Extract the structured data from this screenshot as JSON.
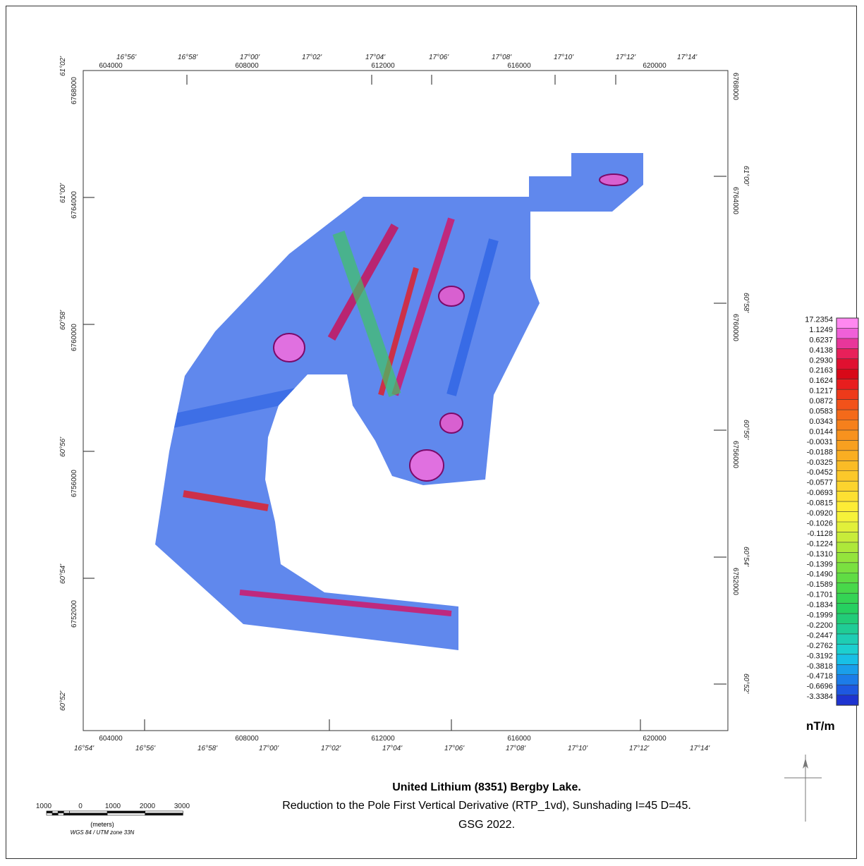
{
  "map": {
    "title": "United Lithium (8351) Bergby Lake.",
    "subtitle": "Reduction to the Pole First Vertical Derivative (RTP_1vd), Sunshading I=45 D=45.",
    "credit": "GSG 2022.",
    "units": "nT/m"
  },
  "axes": {
    "top_lon_labels": [
      "16°56'",
      "16°58'",
      "17°00'",
      "17°02'",
      "17°04'",
      "17°06'",
      "17°08'",
      "17°10'",
      "17°12'",
      "17°14'"
    ],
    "top_easting_labels": [
      "604000",
      "608000",
      "612000",
      "616000",
      "620000"
    ],
    "bottom_easting_labels": [
      "604000",
      "608000",
      "612000",
      "616000",
      "620000"
    ],
    "bottom_lon_labels": [
      "16°54'",
      "16°56'",
      "16°58'",
      "17°00'",
      "17°02'",
      "17°04'",
      "17°06'",
      "17°08'",
      "17°10'",
      "17°12'",
      "17°14'"
    ],
    "left_lat_labels": [
      "61°02'",
      "61°00'",
      "60°58'",
      "60°56'",
      "60°54'",
      "60°52'"
    ],
    "left_northing_labels": [
      "6768000",
      "6764000",
      "6760000",
      "6756000",
      "6752000"
    ],
    "right_northing_labels": [
      "6768000",
      "6764000",
      "6760000",
      "6756000",
      "6752000"
    ],
    "right_lat_labels": [
      "61°00'",
      "60°58'",
      "60°56'",
      "60°54'",
      "60°52'"
    ]
  },
  "legend": {
    "values": [
      "17.2354",
      "1.1249",
      "0.6237",
      "0.4138",
      "0.2930",
      "0.2163",
      "0.1624",
      "0.1217",
      "0.0872",
      "0.0583",
      "0.0343",
      "0.0144",
      "-0.0031",
      "-0.0188",
      "-0.0325",
      "-0.0452",
      "-0.0577",
      "-0.0693",
      "-0.0815",
      "-0.0920",
      "-0.1026",
      "-0.1128",
      "-0.1224",
      "-0.1310",
      "-0.1399",
      "-0.1490",
      "-0.1589",
      "-0.1701",
      "-0.1834",
      "-0.1999",
      "-0.2200",
      "-0.2447",
      "-0.2762",
      "-0.3192",
      "-0.3818",
      "-0.4718",
      "-0.6696",
      "-3.3384"
    ],
    "colors": [
      "#ff88f0",
      "#f060d8",
      "#e8369a",
      "#e8205a",
      "#e01030",
      "#d80818",
      "#e81e1e",
      "#ee3a1a",
      "#f2521a",
      "#f46a1a",
      "#f6801c",
      "#f8921e",
      "#f8a020",
      "#faae22",
      "#fabc26",
      "#fcc82a",
      "#fcd42e",
      "#fde032",
      "#fdec36",
      "#f6f23a",
      "#e2f03a",
      "#c8ec3a",
      "#aee83a",
      "#94e43c",
      "#7ae040",
      "#60dc44",
      "#48d84a",
      "#34d454",
      "#26d060",
      "#22cc78",
      "#20cc96",
      "#1ecdb4",
      "#1ccfd0",
      "#18bfe6",
      "#1a9eea",
      "#1c7ce8",
      "#1e58e0",
      "#1e34d0"
    ]
  },
  "scale_bar": {
    "labels": [
      "1000",
      "0",
      "1000",
      "2000",
      "3000"
    ],
    "units": "(meters)",
    "projection": "WGS 84 / UTM zone 33N"
  }
}
